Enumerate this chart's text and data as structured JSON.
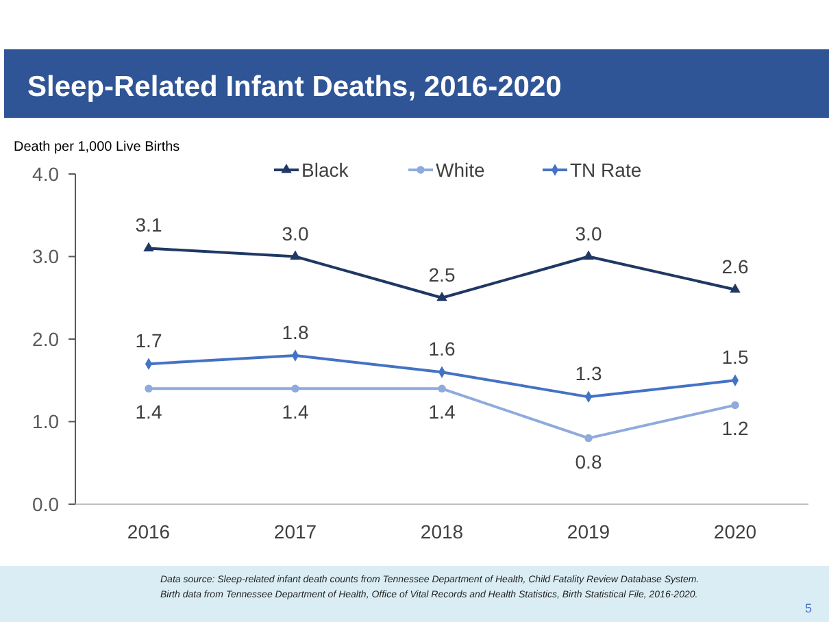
{
  "chart_data": {
    "type": "line",
    "title": "Sleep-Related Infant Deaths, 2016-2020",
    "ylabel": "Death per 1,000 Live Births",
    "categories": [
      "2016",
      "2017",
      "2018",
      "2019",
      "2020"
    ],
    "series": [
      {
        "name": "Black",
        "color": "#1f3864",
        "marker": "triangle",
        "values": [
          3.1,
          3.0,
          2.5,
          3.0,
          2.6
        ],
        "value_labels": [
          "3.1",
          "3.0",
          "2.5",
          "3.0",
          "2.6"
        ]
      },
      {
        "name": "White",
        "color": "#8faadc",
        "marker": "circle",
        "values": [
          1.4,
          1.4,
          1.4,
          0.8,
          1.2
        ],
        "value_labels": [
          "1.4",
          "1.4",
          "1.4",
          "0.8",
          "1.2"
        ]
      },
      {
        "name": "TN Rate",
        "color": "#4472c4",
        "marker": "diamond",
        "values": [
          1.7,
          1.8,
          1.6,
          1.3,
          1.5
        ],
        "value_labels": [
          "1.7",
          "1.8",
          "1.6",
          "1.3",
          "1.5"
        ]
      }
    ],
    "ylim": [
      0,
      4
    ],
    "yticks": [
      {
        "value": 0,
        "label": "0.0"
      },
      {
        "value": 1,
        "label": "1.0"
      },
      {
        "value": 2,
        "label": "2.0"
      },
      {
        "value": 3,
        "label": "3.0"
      },
      {
        "value": 4,
        "label": "4.0"
      }
    ],
    "grid": false,
    "legend": "top",
    "annotations": [
      "Data source: Sleep-related infant death counts from Tennessee Department of Health, Child Fatality Review Database System.",
      "Birth data from Tennessee Department of Health, Office of Vital Records and Health Statistics, Birth Statistical File, 2016-2020.",
      "5"
    ]
  }
}
